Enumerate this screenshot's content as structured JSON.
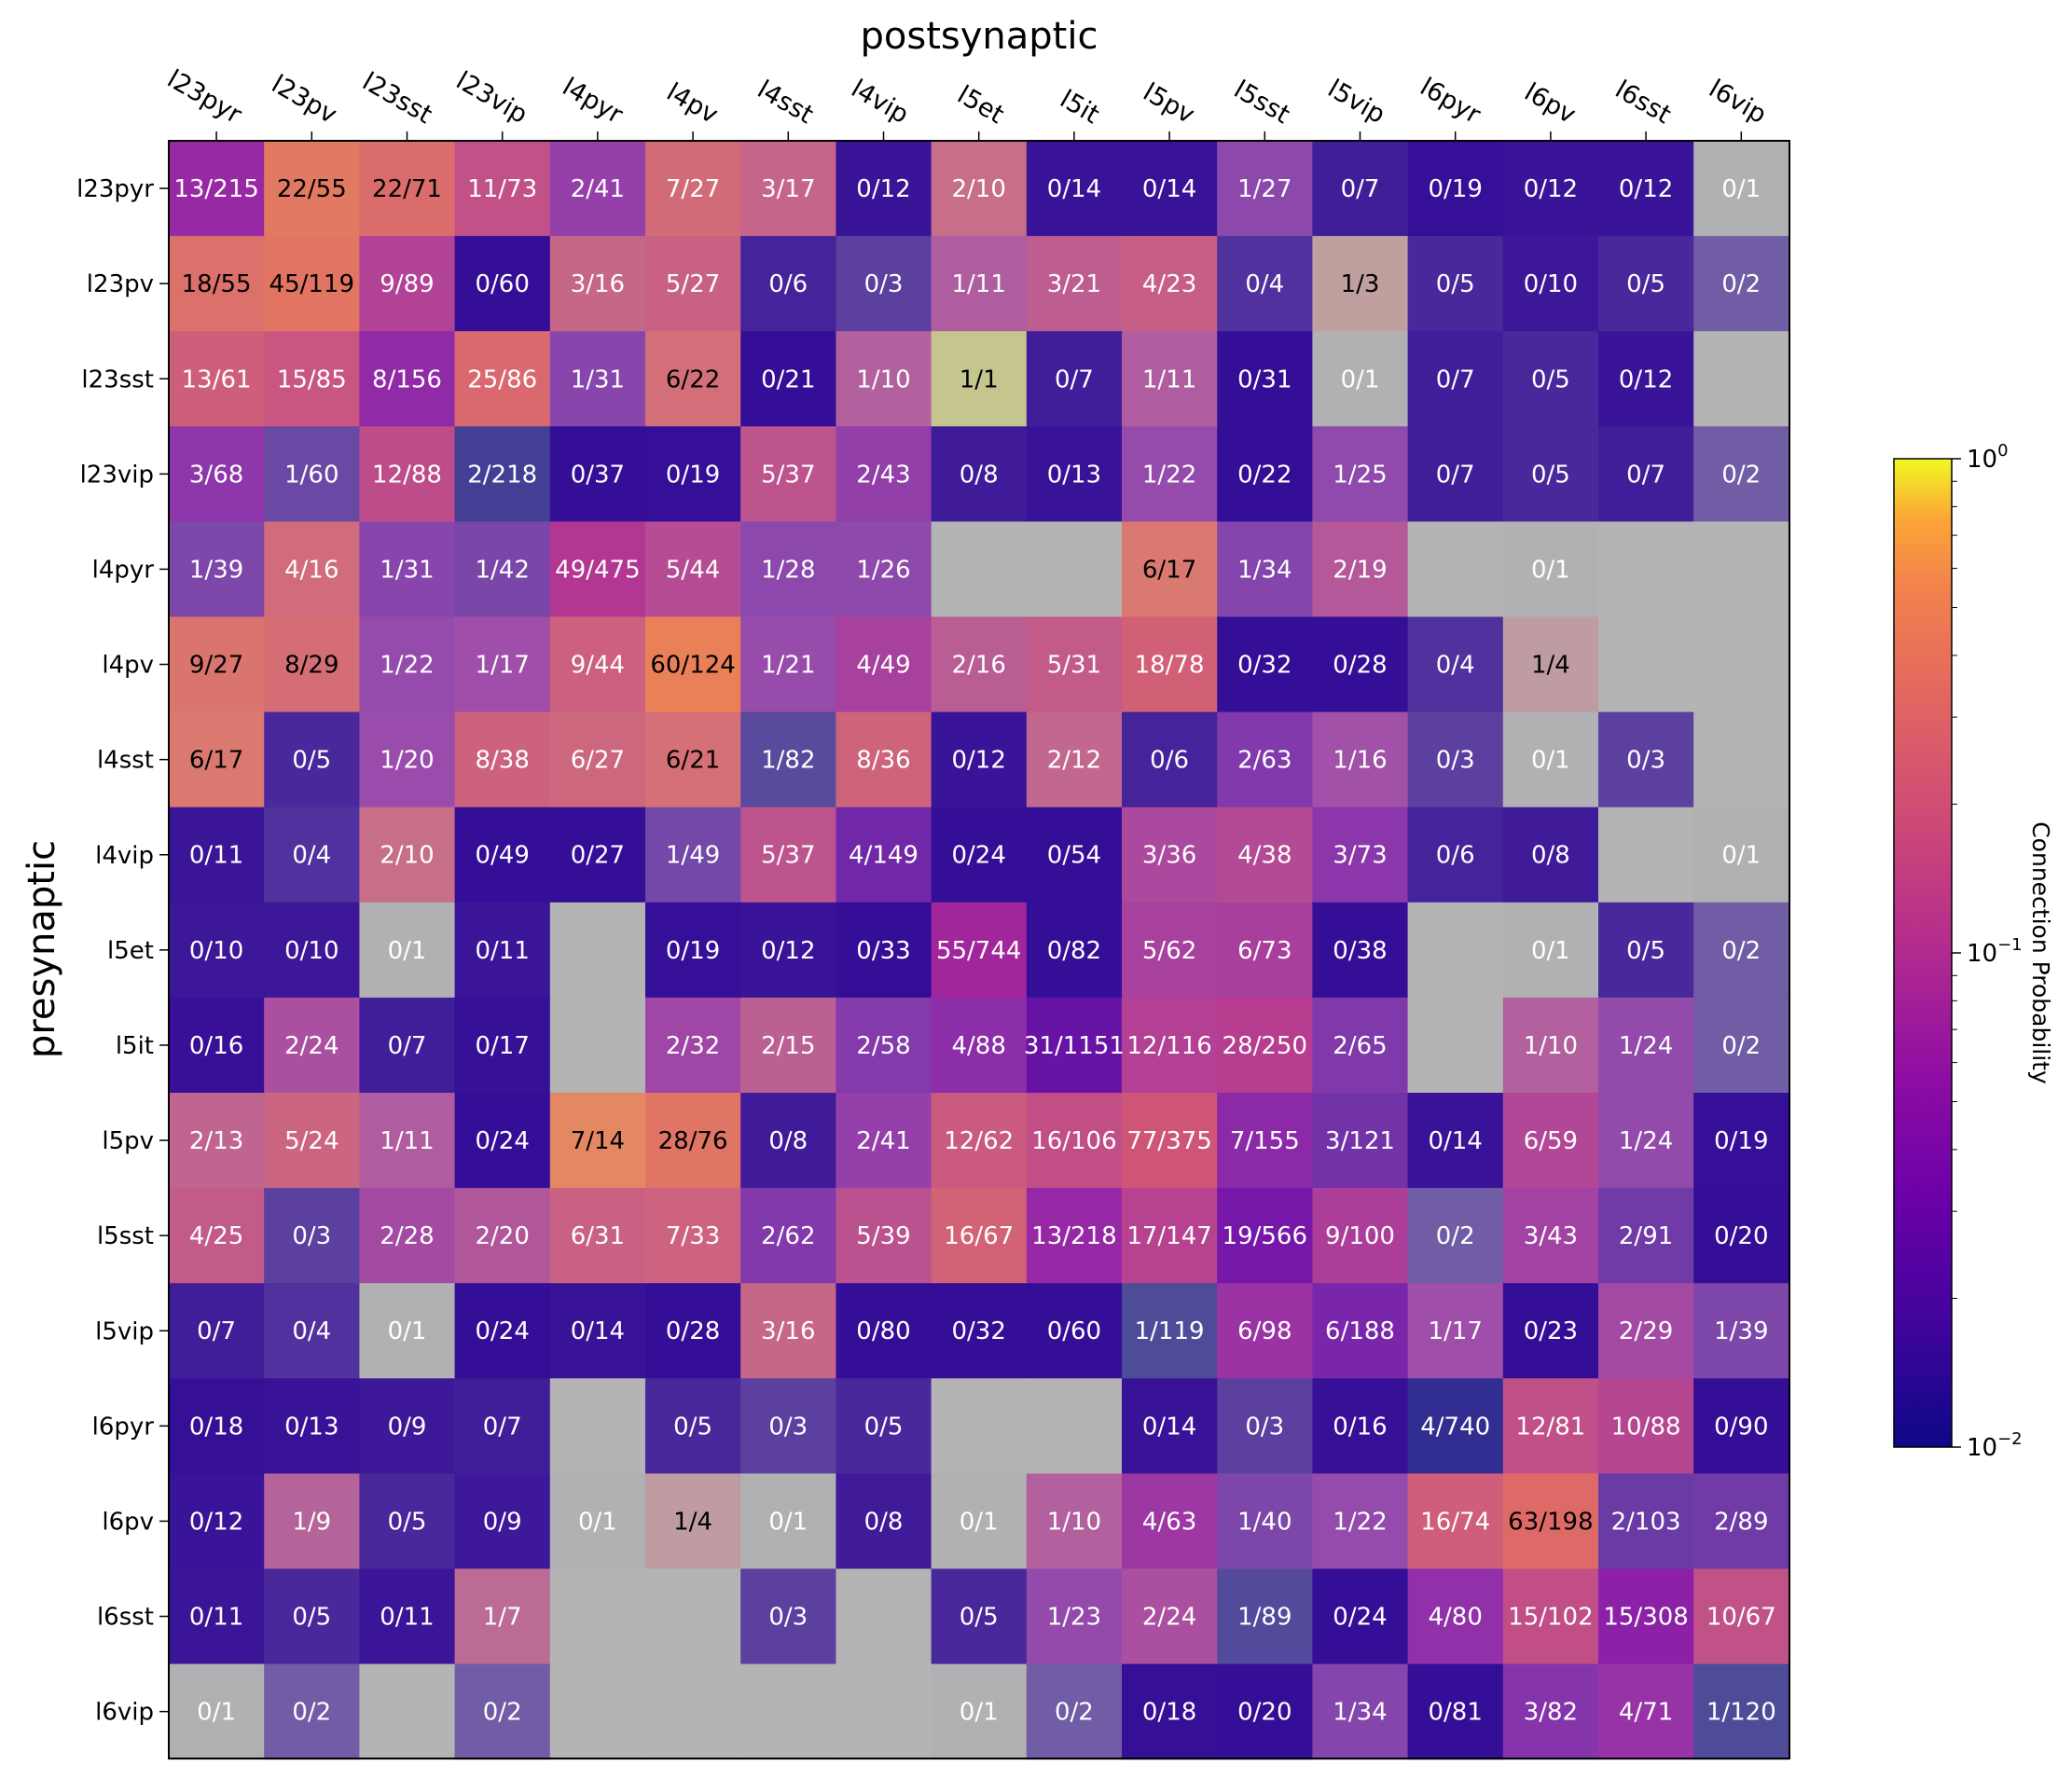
{
  "chart_data": {
    "type": "heatmap",
    "title": "postsynaptic",
    "xlabel": "postsynaptic",
    "ylabel": "presynaptic",
    "x_categories": [
      "l23pyr",
      "l23pv",
      "l23sst",
      "l23vip",
      "l4pyr",
      "l4pv",
      "l4sst",
      "l4vip",
      "l5et",
      "l5it",
      "l5pv",
      "l5sst",
      "l5vip",
      "l6pyr",
      "l6pv",
      "l6sst",
      "l6vip"
    ],
    "y_categories": [
      "l23pyr",
      "l23pv",
      "l23sst",
      "l23vip",
      "l4pyr",
      "l4pv",
      "l4sst",
      "l4vip",
      "l5et",
      "l5it",
      "l5pv",
      "l5sst",
      "l5vip",
      "l6pyr",
      "l6pv",
      "l6sst",
      "l6vip"
    ],
    "cells": [
      [
        "13/215",
        "22/55",
        "22/71",
        "11/73",
        "2/41",
        "7/27",
        "3/17",
        "0/12",
        "2/10",
        "0/14",
        "0/14",
        "1/27",
        "0/7",
        "0/19",
        "0/12",
        "0/12",
        "0/1"
      ],
      [
        "18/55",
        "45/119",
        "9/89",
        "0/60",
        "3/16",
        "5/27",
        "0/6",
        "0/3",
        "1/11",
        "3/21",
        "4/23",
        "0/4",
        "1/3",
        "0/5",
        "0/10",
        "0/5",
        "0/2"
      ],
      [
        "13/61",
        "15/85",
        "8/156",
        "25/86",
        "1/31",
        "6/22",
        "0/21",
        "1/10",
        "1/1",
        "0/7",
        "1/11",
        "0/31",
        "0/1",
        "0/7",
        "0/5",
        "0/12",
        ""
      ],
      [
        "3/68",
        "1/60",
        "12/88",
        "2/218",
        "0/37",
        "0/19",
        "5/37",
        "2/43",
        "0/8",
        "0/13",
        "1/22",
        "0/22",
        "1/25",
        "0/7",
        "0/5",
        "0/7",
        "0/2"
      ],
      [
        "1/39",
        "4/16",
        "1/31",
        "1/42",
        "49/475",
        "5/44",
        "1/28",
        "1/26",
        "",
        "",
        "6/17",
        "1/34",
        "2/19",
        "",
        "0/1",
        "",
        ""
      ],
      [
        "9/27",
        "8/29",
        "1/22",
        "1/17",
        "9/44",
        "60/124",
        "1/21",
        "4/49",
        "2/16",
        "5/31",
        "18/78",
        "0/32",
        "0/28",
        "0/4",
        "1/4",
        "",
        ""
      ],
      [
        "6/17",
        "0/5",
        "1/20",
        "8/38",
        "6/27",
        "6/21",
        "1/82",
        "8/36",
        "0/12",
        "2/12",
        "0/6",
        "2/63",
        "1/16",
        "0/3",
        "0/1",
        "0/3",
        ""
      ],
      [
        "0/11",
        "0/4",
        "2/10",
        "0/49",
        "0/27",
        "1/49",
        "5/37",
        "4/149",
        "0/24",
        "0/54",
        "3/36",
        "4/38",
        "3/73",
        "0/6",
        "0/8",
        "",
        "0/1"
      ],
      [
        "0/10",
        "0/10",
        "0/1",
        "0/11",
        "",
        "0/19",
        "0/12",
        "0/33",
        "55/744",
        "0/82",
        "5/62",
        "6/73",
        "0/38",
        "",
        "0/1",
        "0/5",
        "0/2"
      ],
      [
        "0/16",
        "2/24",
        "0/7",
        "0/17",
        "",
        "2/32",
        "2/15",
        "2/58",
        "4/88",
        "31/1151",
        "12/116",
        "28/250",
        "2/65",
        "",
        "1/10",
        "1/24",
        "0/2"
      ],
      [
        "2/13",
        "5/24",
        "1/11",
        "0/24",
        "7/14",
        "28/76",
        "0/8",
        "2/41",
        "12/62",
        "16/106",
        "77/375",
        "7/155",
        "3/121",
        "0/14",
        "6/59",
        "1/24",
        "0/19"
      ],
      [
        "4/25",
        "0/3",
        "2/28",
        "2/20",
        "6/31",
        "7/33",
        "2/62",
        "5/39",
        "16/67",
        "13/218",
        "17/147",
        "19/566",
        "9/100",
        "0/2",
        "3/43",
        "2/91",
        "0/20"
      ],
      [
        "0/7",
        "0/4",
        "0/1",
        "0/24",
        "0/14",
        "0/28",
        "3/16",
        "0/80",
        "0/32",
        "0/60",
        "1/119",
        "6/98",
        "6/188",
        "1/17",
        "0/23",
        "2/29",
        "1/39"
      ],
      [
        "0/18",
        "0/13",
        "0/9",
        "0/7",
        "",
        "0/5",
        "0/3",
        "0/5",
        "",
        "",
        "0/14",
        "0/3",
        "0/16",
        "4/740",
        "12/81",
        "10/88",
        "0/90"
      ],
      [
        "0/12",
        "1/9",
        "0/5",
        "0/9",
        "0/1",
        "1/4",
        "0/1",
        "0/8",
        "0/1",
        "1/10",
        "4/63",
        "1/40",
        "1/22",
        "16/74",
        "63/198",
        "2/103",
        "2/89"
      ],
      [
        "0/11",
        "0/5",
        "0/11",
        "1/7",
        "",
        "",
        "0/3",
        "",
        "0/5",
        "1/23",
        "2/24",
        "1/89",
        "0/24",
        "4/80",
        "15/102",
        "15/308",
        "10/67"
      ],
      [
        "0/1",
        "0/2",
        "",
        "0/2",
        "",
        "",
        "",
        "",
        "0/1",
        "0/2",
        "0/18",
        "0/20",
        "1/34",
        "0/81",
        "3/82",
        "4/71",
        "1/120"
      ]
    ],
    "colorbar": {
      "label": "Connection Probability",
      "scale": "log",
      "range": [
        0.01,
        1
      ],
      "tick_labels": [
        "10^0",
        "10^-1",
        "10^-2"
      ]
    },
    "colors": {
      "missing": "#b4b4b4"
    }
  }
}
